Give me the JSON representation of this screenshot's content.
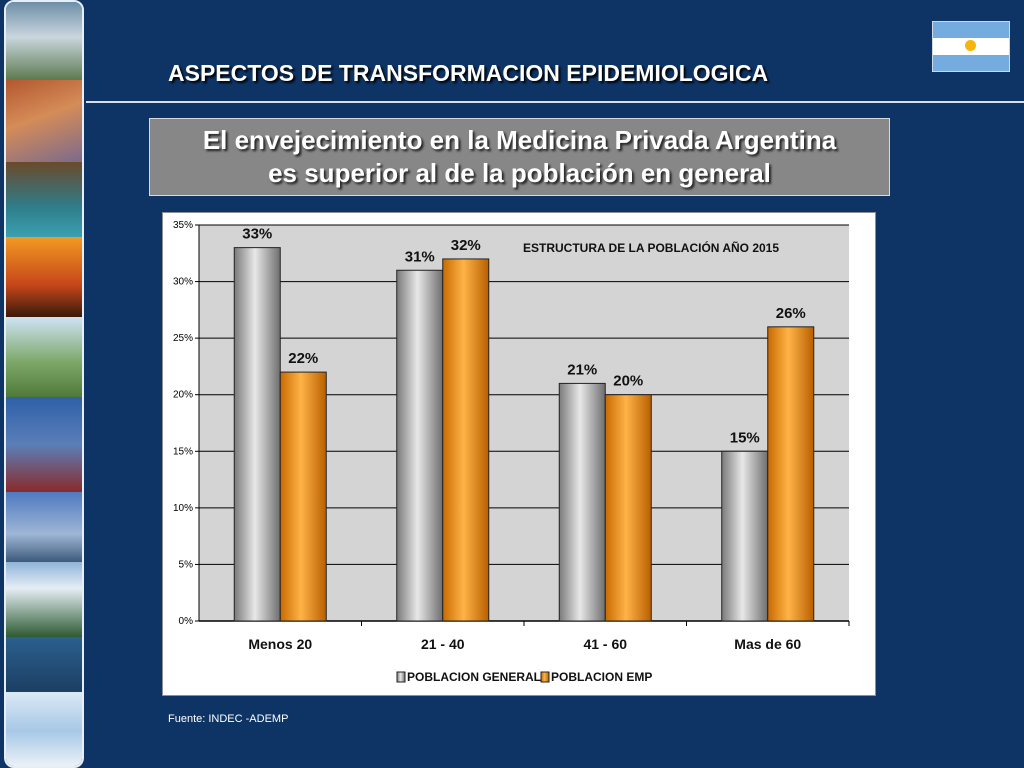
{
  "header": {
    "title": "ASPECTOS DE TRANSFORMACION EPIDEMIOLOGICA"
  },
  "subtitle": {
    "line1": "El envejecimiento en la Medicina Privada Argentina",
    "line2": "es superior al de la población en general"
  },
  "flag": {
    "colors": [
      "#74acdf",
      "#ffffff",
      "#74acdf"
    ],
    "sun_color": "#f6b40e"
  },
  "chart_data": {
    "type": "bar",
    "title": "ESTRUCTURA DE LA POBLACIÓN AÑO 2015",
    "categories": [
      "Menos 20",
      "21 - 40",
      "41 - 60",
      "Mas de 60"
    ],
    "series": [
      {
        "name": "POBLACION GENERAL",
        "values": [
          33,
          31,
          21,
          15
        ],
        "labels": [
          "33%",
          "31%",
          "21%",
          "15%"
        ],
        "color": "#9a9a9a"
      },
      {
        "name": "POBLACION EMP",
        "values": [
          22,
          32,
          20,
          26
        ],
        "labels": [
          "22%",
          "32%",
          "20%",
          "26%"
        ],
        "color": "#f39200"
      }
    ],
    "ylim": [
      0,
      35
    ],
    "yticks": [
      0,
      5,
      10,
      15,
      20,
      25,
      30,
      35
    ],
    "ytick_labels": [
      "0%",
      "5%",
      "10%",
      "15%",
      "20%",
      "25%",
      "30%",
      "35%"
    ],
    "grid": true,
    "plot_background": "#d4d4d4",
    "legend_position": "bottom"
  },
  "footer": {
    "source": "Fuente: INDEC -ADEMP"
  }
}
